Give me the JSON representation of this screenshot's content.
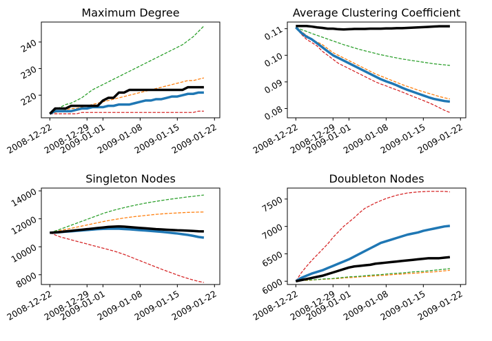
{
  "x_dates": [
    "2008-12-22",
    "2008-12-23",
    "2008-12-24",
    "2008-12-25",
    "2008-12-26",
    "2008-12-27",
    "2008-12-28",
    "2008-12-29",
    "2008-12-30",
    "2008-12-31",
    "2009-01-01",
    "2009-01-02",
    "2009-01-03",
    "2009-01-04",
    "2009-01-05",
    "2009-01-06",
    "2009-01-07",
    "2009-01-08",
    "2009-01-09",
    "2009-01-10",
    "2009-01-11",
    "2009-01-12",
    "2009-01-13",
    "2009-01-14",
    "2009-01-15",
    "2009-01-16",
    "2009-01-17",
    "2009-01-18",
    "2009-01-19",
    "2009-01-20"
  ],
  "colors": {
    "blue": "#1f77b4",
    "orange": "#ff7f0e",
    "green": "#2ca02c",
    "red": "#d62728",
    "black": "#000000"
  },
  "chart_data": [
    {
      "type": "line",
      "title": "Maximum Degree",
      "xlabel": "",
      "ylabel": "",
      "xticks": [
        "2008-12-22",
        "2008-12-29",
        "2009-01-01",
        "2009-01-08",
        "2009-01-15",
        "2009-01-22"
      ],
      "yticks": [
        220,
        230,
        240
      ],
      "ylim": [
        211.5,
        247.5
      ],
      "grid": false,
      "series": [
        {
          "color": "blue",
          "style": "solid",
          "width": 3.5,
          "values": [
            213,
            214,
            214,
            214,
            214,
            214.5,
            215,
            215,
            215.5,
            215.5,
            215.5,
            216,
            216,
            216.5,
            216.5,
            216.5,
            217,
            217.5,
            218,
            218,
            218.5,
            218.5,
            219,
            219.5,
            219.5,
            220,
            220.5,
            220.5,
            221,
            221
          ]
        },
        {
          "color": "orange",
          "style": "dashed",
          "width": 1.3,
          "values": [
            213,
            213.5,
            214,
            214.5,
            215,
            215,
            215.5,
            216,
            216.5,
            217,
            217.5,
            218,
            218.5,
            219,
            219.5,
            220,
            220.5,
            221,
            221.5,
            222,
            222.5,
            223,
            223.5,
            224,
            224.5,
            225,
            225.5,
            225.5,
            226,
            226.5
          ]
        },
        {
          "color": "green",
          "style": "dashed",
          "width": 1.3,
          "values": [
            213,
            214.5,
            215.5,
            216.5,
            217,
            218,
            219,
            220.5,
            222,
            223,
            224,
            225,
            226,
            227,
            228,
            229,
            230,
            231,
            232,
            233,
            234,
            235,
            236,
            237,
            238,
            239,
            240.5,
            242,
            244,
            246
          ]
        },
        {
          "color": "red",
          "style": "dashed",
          "width": 1.3,
          "values": [
            213,
            213,
            213,
            213,
            213,
            213,
            213.5,
            213.5,
            213.5,
            213.5,
            213.5,
            213.5,
            213.5,
            213.5,
            213.5,
            213.5,
            213.5,
            213.5,
            213.5,
            213.5,
            213.5,
            213.5,
            213.5,
            213.5,
            213.5,
            213.5,
            213.5,
            213.5,
            214,
            214
          ]
        },
        {
          "color": "black",
          "style": "solid",
          "width": 3.5,
          "values": [
            213,
            215,
            215,
            215,
            216,
            216,
            216,
            216,
            216,
            216,
            218,
            219,
            219,
            221,
            221,
            222,
            222,
            222,
            222,
            222,
            222,
            222,
            222,
            222,
            222,
            222,
            223,
            223,
            223,
            223
          ]
        }
      ]
    },
    {
      "type": "line",
      "title": "Average Clustering Coefficient",
      "xlabel": "",
      "ylabel": "",
      "xticks": [
        "2008-12-22",
        "2008-12-29",
        "2009-01-01",
        "2009-01-08",
        "2009-01-15",
        "2009-01-22"
      ],
      "yticks": [
        0.08,
        0.09,
        0.1,
        0.11
      ],
      "ylim": [
        0.0765,
        0.1125
      ],
      "grid": false,
      "series": [
        {
          "color": "blue",
          "style": "solid",
          "width": 3.5,
          "values": [
            0.1105,
            0.1085,
            0.107,
            0.106,
            0.1045,
            0.103,
            0.1015,
            0.1,
            0.099,
            0.098,
            0.097,
            0.096,
            0.095,
            0.094,
            0.093,
            0.092,
            0.091,
            0.0902,
            0.0895,
            0.0887,
            0.0878,
            0.087,
            0.0863,
            0.0856,
            0.0849,
            0.0842,
            0.0836,
            0.0832,
            0.0828,
            0.0826
          ]
        },
        {
          "color": "orange",
          "style": "dashed",
          "width": 1.3,
          "values": [
            0.1105,
            0.109,
            0.1075,
            0.106,
            0.105,
            0.104,
            0.1025,
            0.101,
            0.1,
            0.099,
            0.098,
            0.097,
            0.096,
            0.095,
            0.094,
            0.093,
            0.0922,
            0.0914,
            0.0906,
            0.0898,
            0.089,
            0.0883,
            0.0876,
            0.0869,
            0.0863,
            0.0857,
            0.0851,
            0.0845,
            0.084,
            0.0836
          ]
        },
        {
          "color": "green",
          "style": "dashed",
          "width": 1.3,
          "values": [
            0.1105,
            0.1097,
            0.109,
            0.1082,
            0.1075,
            0.1068,
            0.1061,
            0.1054,
            0.1047,
            0.104,
            0.1034,
            0.1028,
            0.1022,
            0.1017,
            0.1012,
            0.1007,
            0.1002,
            0.0998,
            0.0994,
            0.099,
            0.0986,
            0.0983,
            0.098,
            0.0977,
            0.0974,
            0.0971,
            0.0968,
            0.0966,
            0.0964,
            0.0962
          ]
        },
        {
          "color": "red",
          "style": "dashed",
          "width": 1.3,
          "values": [
            0.1105,
            0.108,
            0.106,
            0.1048,
            0.1035,
            0.1015,
            0.1,
            0.0985,
            0.097,
            0.096,
            0.095,
            0.094,
            0.093,
            0.092,
            0.091,
            0.09,
            0.0892,
            0.0885,
            0.0877,
            0.087,
            0.0862,
            0.0854,
            0.0846,
            0.0838,
            0.083,
            0.0822,
            0.0813,
            0.0803,
            0.0793,
            0.0785
          ]
        },
        {
          "color": "black",
          "style": "solid",
          "width": 3.5,
          "values": [
            0.111,
            0.111,
            0.111,
            0.1108,
            0.1105,
            0.1103,
            0.11,
            0.11,
            0.1098,
            0.1097,
            0.1098,
            0.1099,
            0.1099,
            0.1099,
            0.11,
            0.11,
            0.11,
            0.1101,
            0.1101,
            0.1102,
            0.1102,
            0.1103,
            0.1104,
            0.1105,
            0.1106,
            0.1107,
            0.1108,
            0.1109,
            0.1109,
            0.1109
          ]
        }
      ]
    },
    {
      "type": "line",
      "title": "Singleton Nodes",
      "xlabel": "",
      "ylabel": "",
      "xticks": [
        "2008-12-22",
        "2008-12-29",
        "2009-01-01",
        "2009-01-08",
        "2009-01-15",
        "2009-01-22"
      ],
      "yticks": [
        8000,
        10000,
        12000,
        14000
      ],
      "ylim": [
        7300,
        14200
      ],
      "grid": false,
      "series": [
        {
          "color": "blue",
          "style": "solid",
          "width": 3.5,
          "values": [
            11000,
            11020,
            11050,
            11080,
            11110,
            11140,
            11170,
            11200,
            11230,
            11260,
            11280,
            11290,
            11300,
            11290,
            11270,
            11250,
            11220,
            11190,
            11160,
            11130,
            11100,
            11070,
            11030,
            10990,
            10950,
            10900,
            10850,
            10780,
            10700,
            10650
          ]
        },
        {
          "color": "orange",
          "style": "dashed",
          "width": 1.3,
          "values": [
            11000,
            11080,
            11160,
            11240,
            11320,
            11400,
            11480,
            11560,
            11640,
            11720,
            11800,
            11870,
            11940,
            12000,
            12060,
            12110,
            12160,
            12200,
            12240,
            12280,
            12320,
            12350,
            12380,
            12400,
            12420,
            12440,
            12460,
            12470,
            12480,
            12490
          ]
        },
        {
          "color": "green",
          "style": "dashed",
          "width": 1.3,
          "values": [
            11000,
            11130,
            11260,
            11400,
            11540,
            11680,
            11820,
            11960,
            12100,
            12240,
            12380,
            12500,
            12610,
            12710,
            12800,
            12890,
            12970,
            13050,
            13120,
            13190,
            13250,
            13310,
            13370,
            13420,
            13470,
            13520,
            13570,
            13610,
            13660,
            13700
          ]
        },
        {
          "color": "red",
          "style": "dashed",
          "width": 1.3,
          "values": [
            11000,
            10850,
            10700,
            10600,
            10500,
            10400,
            10300,
            10200,
            10100,
            10000,
            9900,
            9800,
            9700,
            9580,
            9450,
            9300,
            9150,
            9000,
            8850,
            8700,
            8550,
            8400,
            8260,
            8120,
            7980,
            7850,
            7730,
            7620,
            7520,
            7450
          ]
        },
        {
          "color": "black",
          "style": "solid",
          "width": 3.5,
          "values": [
            11000,
            11030,
            11060,
            11100,
            11140,
            11180,
            11220,
            11260,
            11300,
            11340,
            11380,
            11420,
            11440,
            11460,
            11440,
            11410,
            11380,
            11350,
            11320,
            11290,
            11260,
            11240,
            11220,
            11200,
            11180,
            11170,
            11150,
            11130,
            11110,
            11100
          ]
        }
      ]
    },
    {
      "type": "line",
      "title": "Doubleton Nodes",
      "xlabel": "",
      "ylabel": "",
      "xticks": [
        "2008-12-22",
        "2008-12-29",
        "2009-01-01",
        "2009-01-08",
        "2009-01-15",
        "2009-01-22"
      ],
      "yticks": [
        6000,
        6500,
        7000,
        7500
      ],
      "ylim": [
        5940,
        7700
      ],
      "grid": false,
      "series": [
        {
          "color": "blue",
          "style": "solid",
          "width": 3.5,
          "values": [
            6000,
            6060,
            6100,
            6140,
            6170,
            6200,
            6240,
            6280,
            6320,
            6360,
            6400,
            6450,
            6500,
            6550,
            6600,
            6650,
            6700,
            6730,
            6760,
            6790,
            6820,
            6850,
            6870,
            6890,
            6920,
            6940,
            6960,
            6980,
            7000,
            7010
          ]
        },
        {
          "color": "orange",
          "style": "dashed",
          "width": 1.3,
          "values": [
            6000,
            6010,
            6015,
            6020,
            6030,
            6035,
            6040,
            6045,
            6050,
            6060,
            6065,
            6070,
            6080,
            6085,
            6090,
            6100,
            6105,
            6110,
            6120,
            6125,
            6130,
            6140,
            6145,
            6150,
            6160,
            6165,
            6170,
            6180,
            6190,
            6200
          ]
        },
        {
          "color": "green",
          "style": "dashed",
          "width": 1.3,
          "values": [
            6000,
            6010,
            6020,
            6025,
            6030,
            6040,
            6045,
            6050,
            6060,
            6070,
            6080,
            6085,
            6090,
            6100,
            6110,
            6115,
            6120,
            6130,
            6140,
            6145,
            6150,
            6160,
            6170,
            6175,
            6180,
            6190,
            6200,
            6210,
            6220,
            6230
          ]
        },
        {
          "color": "red",
          "style": "dashed",
          "width": 1.3,
          "values": [
            6000,
            6150,
            6270,
            6380,
            6480,
            6580,
            6680,
            6800,
            6900,
            7000,
            7080,
            7160,
            7250,
            7330,
            7380,
            7430,
            7470,
            7510,
            7540,
            7570,
            7590,
            7610,
            7620,
            7630,
            7635,
            7640,
            7640,
            7640,
            7640,
            7630
          ]
        },
        {
          "color": "black",
          "style": "solid",
          "width": 3.5,
          "values": [
            6000,
            6020,
            6040,
            6060,
            6080,
            6100,
            6130,
            6160,
            6190,
            6220,
            6250,
            6270,
            6280,
            6290,
            6300,
            6320,
            6330,
            6340,
            6350,
            6360,
            6370,
            6380,
            6390,
            6400,
            6410,
            6420,
            6420,
            6420,
            6430,
            6440
          ]
        }
      ]
    }
  ]
}
